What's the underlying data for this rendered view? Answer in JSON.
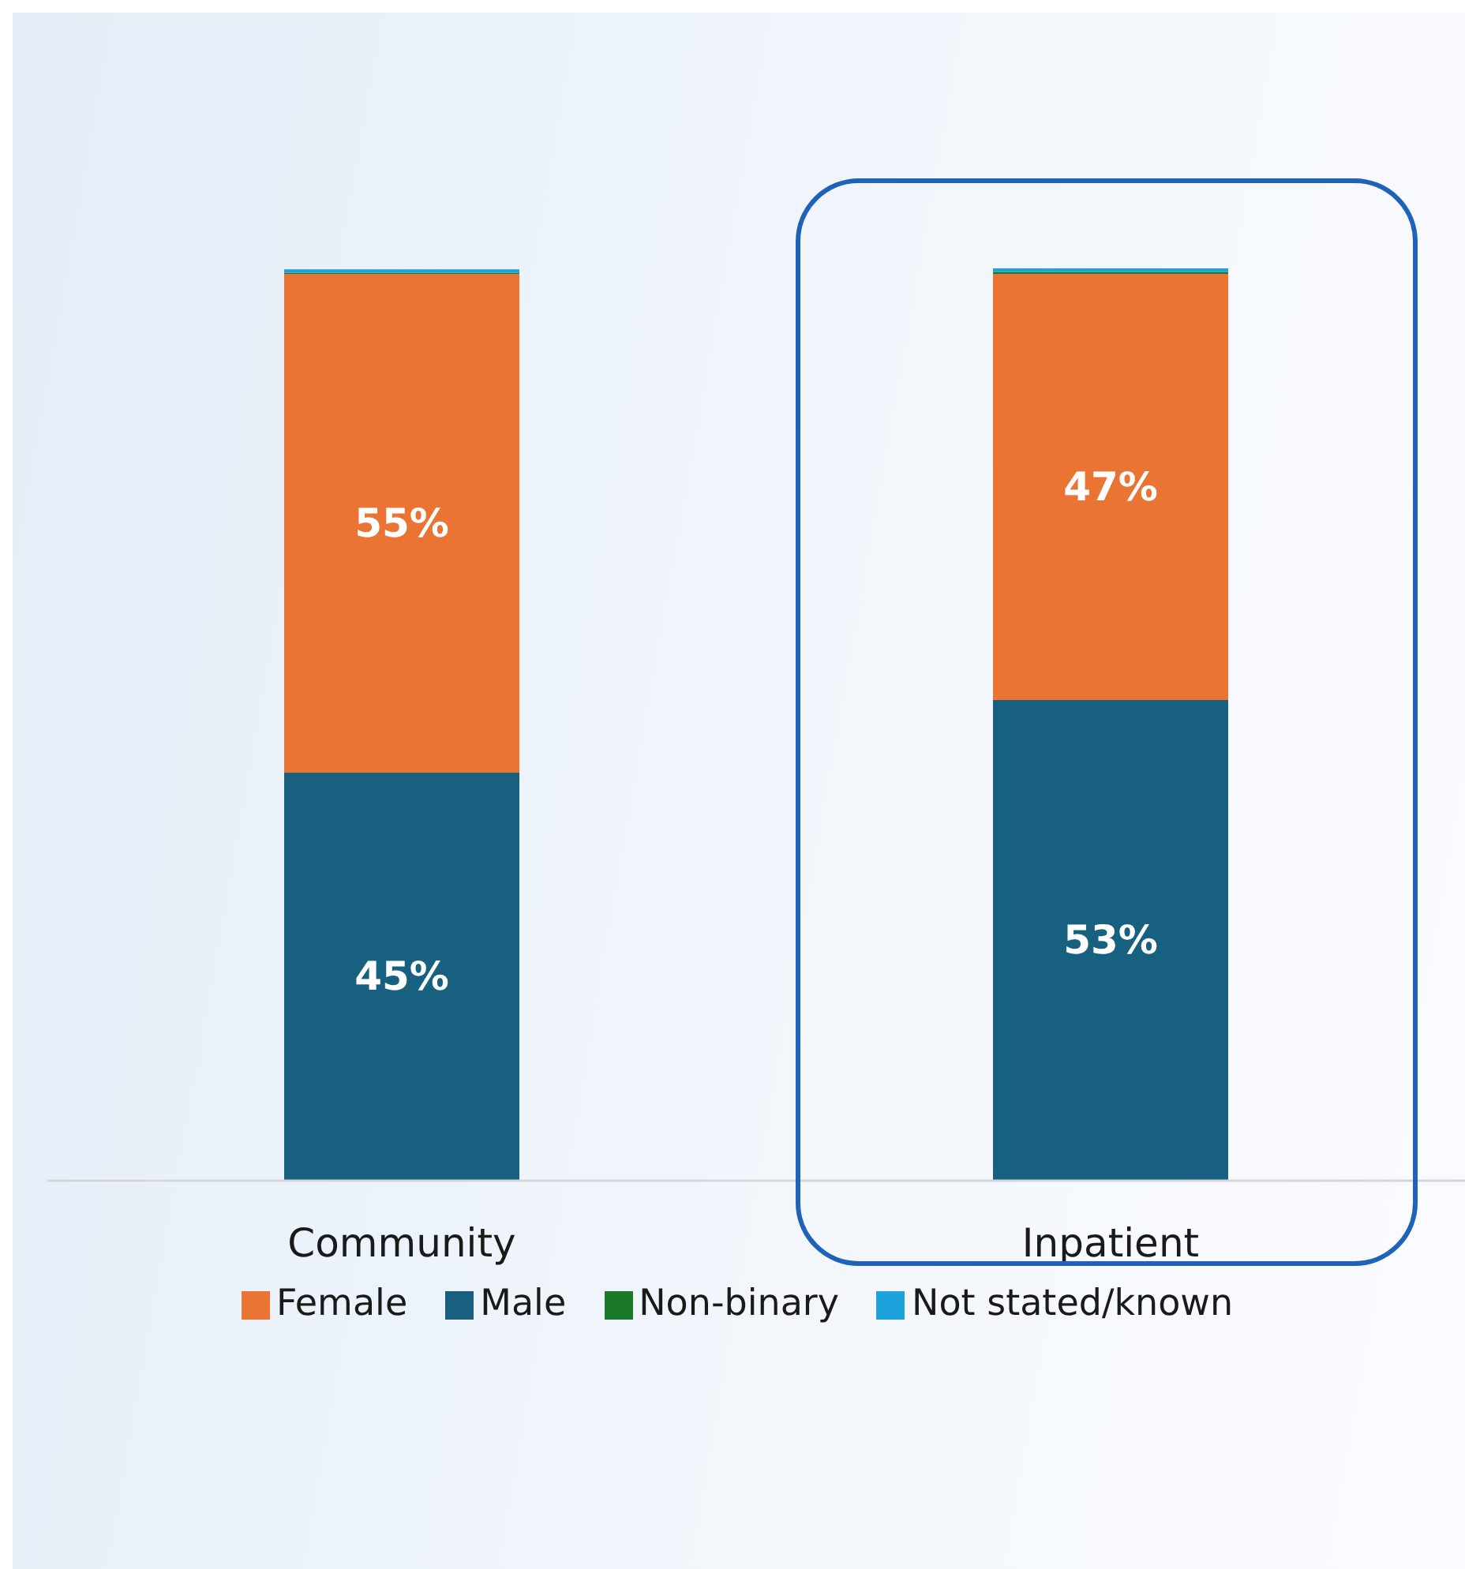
{
  "chart_data": {
    "type": "bar",
    "stacked": true,
    "categories": [
      "Community",
      "Inpatient"
    ],
    "legend": "bottom",
    "grid": false,
    "series": [
      {
        "name": "Male",
        "color": "#17607f",
        "values": [
          45,
          53
        ],
        "value_labels": [
          "45%",
          "53%"
        ]
      },
      {
        "name": "Female",
        "color": "#ea7434",
        "values": [
          55,
          47
        ],
        "value_labels": [
          "55%",
          "47%"
        ]
      },
      {
        "name": "Non-binary",
        "color": "#1a7a2a",
        "values": [
          0.1,
          0.2
        ]
      },
      {
        "name": "Not stated/known",
        "color": "#1ca3dc",
        "values": [
          0.4,
          0.4
        ]
      }
    ]
  }
}
